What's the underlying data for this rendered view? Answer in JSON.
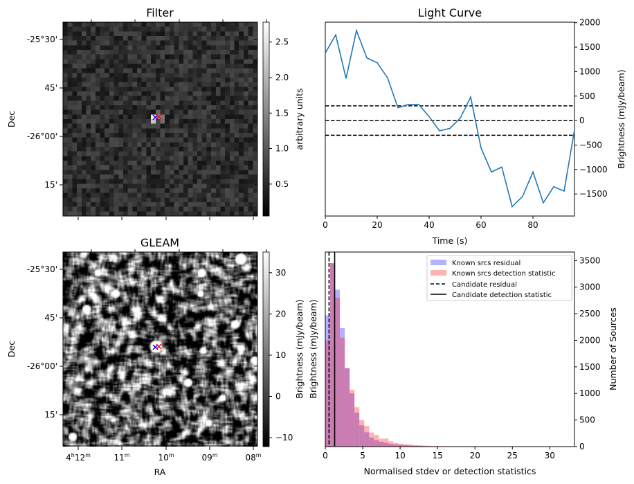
{
  "chart_data": [
    {
      "type": "heatmap",
      "title": "Filter",
      "ylabel": "Dec",
      "yticks": [
        "-25°30'",
        "45'",
        "-26°00'",
        "15'"
      ],
      "colorbar": {
        "label": "arbitrary units",
        "ticks": [
          "0.5",
          "1.0",
          "1.5",
          "2.0",
          "2.5"
        ],
        "tick_values": [
          0.5,
          1.0,
          1.5,
          2.0,
          2.5
        ],
        "range": [
          0.05,
          2.78
        ]
      },
      "markers": [
        {
          "color": "#0000ff",
          "symbol": "x"
        },
        {
          "color": "#ff0000",
          "symbol": "x"
        }
      ]
    },
    {
      "type": "line",
      "title": "Light Curve",
      "xlabel": "Time (s)",
      "ylabel": "Brightness (mJy/beam)",
      "xlim": [
        0,
        96
      ],
      "ylim": [
        -1950,
        2010
      ],
      "xticks": [
        "0",
        "20",
        "40",
        "60",
        "80"
      ],
      "xtick_values": [
        0,
        20,
        40,
        60,
        80
      ],
      "yticks": [
        "−1500",
        "−1000",
        "−500",
        "0",
        "500",
        "1000",
        "1500",
        "2000"
      ],
      "ytick_values": [
        -1500,
        -1000,
        -500,
        0,
        500,
        1000,
        1500,
        2000
      ],
      "x": [
        0,
        4,
        8,
        12,
        16,
        20,
        24,
        28,
        32,
        36,
        40,
        44,
        48,
        52,
        56,
        60,
        64,
        68,
        72,
        76,
        80,
        84,
        88,
        92,
        96
      ],
      "y": [
        1380,
        1750,
        860,
        1840,
        1280,
        1180,
        870,
        260,
        330,
        330,
        80,
        -210,
        -160,
        50,
        480,
        -560,
        -1050,
        -950,
        -1760,
        -1550,
        -1050,
        -1680,
        -1350,
        -1440,
        -190
      ],
      "color": "#1f77b4",
      "hlines": [
        300,
        0,
        -300
      ]
    },
    {
      "type": "heatmap",
      "title": "GLEAM",
      "xlabel": "RA",
      "ylabel": "Dec",
      "xticks": [
        "4h12m",
        "11m",
        "10m",
        "09m",
        "08m"
      ],
      "yticks": [
        "-25°30'",
        "45'",
        "-26°00'",
        "15'"
      ],
      "colorbar": {
        "label": "Brightness (mJy/beam)",
        "ticks": [
          "−10",
          "0",
          "10",
          "20",
          "30"
        ],
        "tick_values": [
          -10,
          0,
          10,
          20,
          30
        ],
        "range": [
          -12,
          35
        ]
      },
      "markers": [
        {
          "color": "#0000ff",
          "symbol": "x"
        },
        {
          "color": "#ff0000",
          "symbol": "x"
        }
      ]
    },
    {
      "type": "bar",
      "xlabel": "Normalised stdev or detection statistics",
      "ylabel": "Brightness (mJy/beam)",
      "ylabel_right": "Number of Sources",
      "xlim": [
        0,
        33.3
      ],
      "ylim": [
        0,
        3660
      ],
      "xticks": [
        "0",
        "5",
        "10",
        "15",
        "20",
        "25",
        "30"
      ],
      "xtick_values": [
        0,
        5,
        10,
        15,
        20,
        25,
        30
      ],
      "yticks": [
        "0",
        "500",
        "1000",
        "1500",
        "2000",
        "2500",
        "3000",
        "3500"
      ],
      "ytick_values": [
        0,
        500,
        1000,
        1500,
        2000,
        2500,
        3000,
        3500
      ],
      "bin_width": 0.65,
      "series": [
        {
          "name": "Known srcs residual",
          "color": "#0000ff",
          "alpha": 0.3,
          "values": [
            2470,
            3450,
            2950,
            2230,
            1480,
            1000,
            640,
            400,
            270,
            170,
            120,
            90,
            70,
            50,
            40,
            30,
            25,
            20,
            15,
            12,
            10,
            8,
            6,
            5,
            4,
            3,
            2,
            2,
            1,
            1,
            1,
            1,
            1,
            1,
            0,
            0,
            0,
            0,
            0,
            0,
            0,
            0,
            0,
            0,
            0,
            0,
            0,
            0,
            0,
            0,
            0,
            0,
            0,
            0,
            0,
            0,
            0,
            0,
            0,
            0,
            0,
            0,
            0,
            0,
            0,
            0,
            0,
            0,
            0,
            0,
            0,
            0,
            0,
            0,
            0,
            0,
            0,
            0,
            0,
            0,
            0,
            0,
            0,
            0,
            0,
            0,
            0,
            0,
            0,
            0,
            0,
            0,
            0,
            0,
            0,
            0,
            0,
            0,
            0,
            0,
            0,
            0,
            0,
            0,
            0,
            0,
            20
          ]
        },
        {
          "name": "Known srcs detection statistic",
          "color": "#ff0000",
          "alpha": 0.3,
          "values": [
            2000,
            3450,
            2800,
            2050,
            1470,
            1070,
            740,
            500,
            390,
            265,
            220,
            150,
            150,
            100,
            70,
            55,
            45,
            40,
            30,
            25,
            20,
            15,
            12,
            10,
            8,
            6,
            5,
            4,
            4,
            3,
            3,
            2,
            2,
            2,
            2,
            1,
            1,
            1,
            1,
            1,
            1,
            1,
            1,
            1,
            1,
            1,
            1,
            1,
            1,
            1,
            1,
            1,
            1,
            1,
            1,
            1,
            1,
            1,
            1,
            1,
            1,
            1,
            1,
            1,
            1,
            1,
            1,
            1,
            1,
            1,
            0,
            0,
            0,
            0,
            0,
            0,
            0,
            0,
            0,
            0,
            0,
            0,
            0,
            0,
            0,
            0,
            0,
            0,
            0,
            0,
            0,
            0,
            0,
            0,
            0,
            0,
            0,
            0,
            0,
            0,
            0,
            0,
            0,
            0,
            0,
            0,
            0,
            0,
            0,
            0,
            0,
            0,
            0,
            0,
            0,
            0,
            0,
            0,
            0,
            0,
            0,
            0,
            0,
            0,
            0,
            0,
            0,
            0,
            0,
            0,
            0,
            0,
            0,
            0,
            0,
            0,
            0,
            0,
            0,
            0,
            0,
            0,
            0,
            0,
            0,
            0,
            0,
            0,
            0,
            0,
            0,
            0
          ]
        }
      ],
      "vlines": [
        {
          "name": "Candidate residual",
          "x": 0.5,
          "style": "dashed"
        },
        {
          "name": "Candidate detection statistic",
          "x": 1.25,
          "style": "solid"
        }
      ],
      "legend": {
        "position": "upper right",
        "entries": [
          "Known srcs residual",
          "Known srcs detection statistic",
          "Candidate residual",
          "Candidate detection statistic"
        ]
      }
    }
  ]
}
